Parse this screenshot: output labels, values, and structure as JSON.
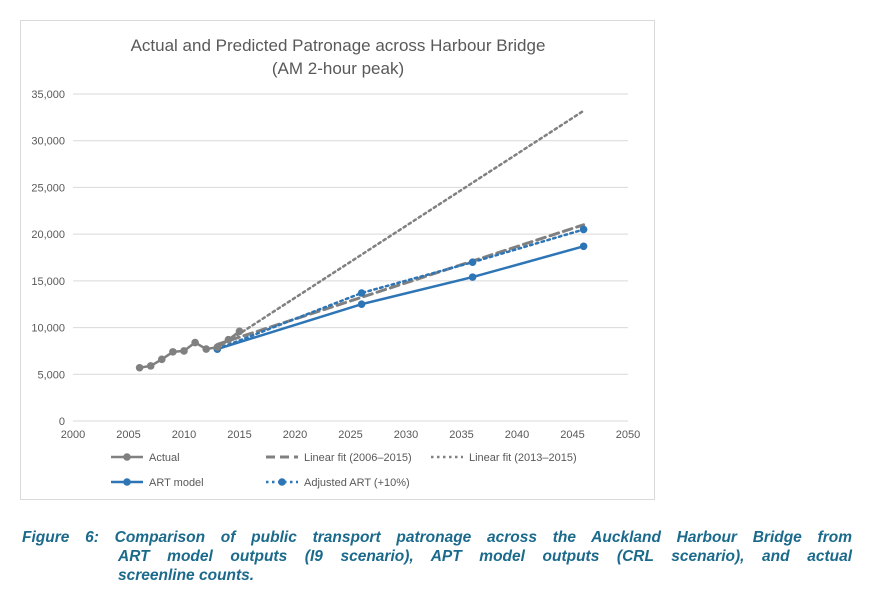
{
  "chart_data": {
    "type": "line",
    "title_line1": "Actual and Predicted Patronage across Harbour Bridge",
    "title_line2": "(AM 2-hour peak)",
    "xlim": [
      2000,
      2050
    ],
    "ylim": [
      0,
      35000
    ],
    "x_ticks": [
      "2000",
      "2005",
      "2010",
      "2015",
      "2020",
      "2025",
      "2030",
      "2035",
      "2040",
      "2045",
      "2050"
    ],
    "y_ticks": [
      "0",
      "5,000",
      "10,000",
      "15,000",
      "20,000",
      "25,000",
      "30,000",
      "35,000"
    ],
    "grid": true,
    "legend_position": "bottom",
    "series": [
      {
        "name": "Actual",
        "style": "solid-markers",
        "color": "#808080",
        "x": [
          2006,
          2007,
          2008,
          2009,
          2010,
          2011,
          2012,
          2013,
          2014,
          2015
        ],
        "y": [
          5700,
          5900,
          6600,
          7400,
          7500,
          8400,
          7700,
          7900,
          8700,
          9600
        ]
      },
      {
        "name": "Linear fit (2006–2015)",
        "style": "dashed",
        "color": "#808080",
        "x": [
          2013,
          2046
        ],
        "y": [
          8200,
          21000
        ]
      },
      {
        "name": "Linear fit (2013–2015)",
        "style": "dotted",
        "color": "#808080",
        "x": [
          2013,
          2046
        ],
        "y": [
          7800,
          33200
        ]
      },
      {
        "name": "ART model",
        "style": "solid-markers",
        "color": "#2e75b6",
        "x": [
          2013,
          2026,
          2036,
          2046
        ],
        "y": [
          7700,
          12500,
          15400,
          18700
        ]
      },
      {
        "name": "Adjusted ART (+10%)",
        "style": "dotted-markers",
        "color": "#2e75b6",
        "x": [
          2013,
          2026,
          2036,
          2046
        ],
        "y": [
          7700,
          13700,
          17000,
          20500
        ]
      }
    ]
  },
  "caption": {
    "line1": "Figure 6: Comparison of public transport patronage across the Auckland Harbour Bridge from",
    "line2": "ART model outputs (I9 scenario), APT model outputs (CRL scenario), and actual",
    "line3": "screenline counts."
  }
}
